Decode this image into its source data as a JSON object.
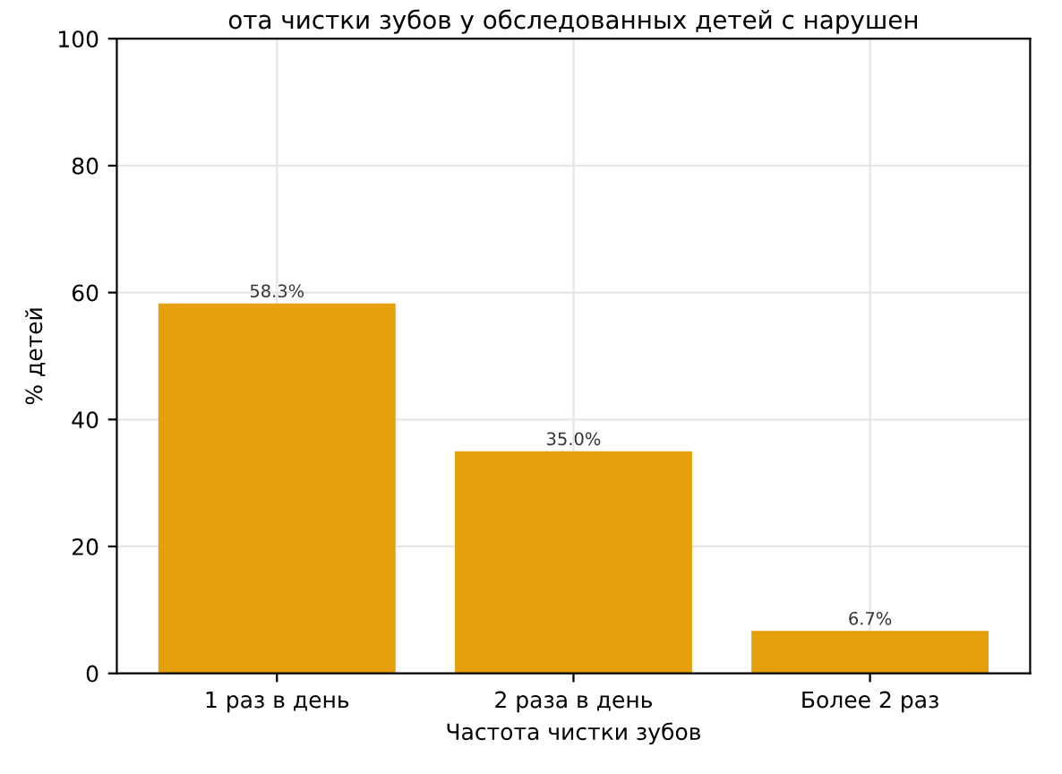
{
  "chart_data": {
    "type": "bar",
    "title": "ота чистки зубов у обследованных детей с нарушен",
    "xlabel": "Частота чистки зубов",
    "ylabel": "% детей",
    "categories": [
      "1 раз в день",
      "2 раза в день",
      "Более 2 раз"
    ],
    "values": [
      58.3,
      35.0,
      6.7
    ],
    "value_labels": [
      "58.3%",
      "35.0%",
      "6.7%"
    ],
    "color": "#e6a00c",
    "ylim": [
      0,
      100
    ],
    "yticks": [
      0,
      20,
      40,
      60,
      80,
      100
    ],
    "grid": true
  }
}
